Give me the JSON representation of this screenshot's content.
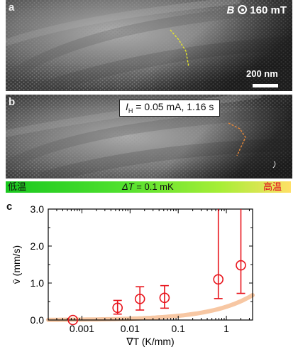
{
  "panel_a": {
    "label": "a",
    "field_symbol": "B",
    "field_value": "160 mT",
    "scale_text": "200 nm"
  },
  "panel_b": {
    "label": "b",
    "heater_sym": "I",
    "heater_sub": "H",
    "heater_rest": " = 0.05 mA, 1.16 s"
  },
  "gradient": {
    "left_text": "低温",
    "center_sym": "ΔT",
    "center_rest": " = 0.1 mK",
    "right_text": "高温",
    "left_color": "#19c81f",
    "right_color": "#ffe066",
    "right_text_color": "#e0001b"
  },
  "panel_c": {
    "label": "c"
  },
  "chart_data": {
    "type": "scatter",
    "x_scale": "log",
    "xlabel": "∇T (K/mm)",
    "ylabel": "v̄ (mm/s)",
    "xlim": [
      0.0002,
      3.5
    ],
    "ylim": [
      0,
      3.0
    ],
    "x_ticks": [
      0.001,
      0.01,
      0.1,
      1
    ],
    "x_tick_labels": [
      "0.001",
      "0.01",
      "0.1",
      "1"
    ],
    "y_ticks": [
      0,
      1.0,
      2.0,
      3.0
    ],
    "y_tick_labels": [
      "0.0",
      "1.0",
      "2.0",
      "3.0"
    ],
    "marker_color": "#e8141c",
    "fit_color": "#f7c7a3",
    "points": [
      {
        "x": 0.00065,
        "y": 0.0,
        "err_low": 0.0,
        "err_high": 0.0
      },
      {
        "x": 0.0055,
        "y": 0.33,
        "err_low": 0.17,
        "err_high": 0.2
      },
      {
        "x": 0.016,
        "y": 0.57,
        "err_low": 0.3,
        "err_high": 0.33
      },
      {
        "x": 0.052,
        "y": 0.6,
        "err_low": 0.28,
        "err_high": 0.33
      },
      {
        "x": 0.68,
        "y": 1.1,
        "err_low": 0.52,
        "err_high": 1.9
      },
      {
        "x": 2.0,
        "y": 1.48,
        "err_low": 0.76,
        "err_high": 1.52
      }
    ],
    "fit": {
      "x_start": 0.0002,
      "x_end": 3.5,
      "slope": 0.36,
      "offset": 0.0
    }
  }
}
